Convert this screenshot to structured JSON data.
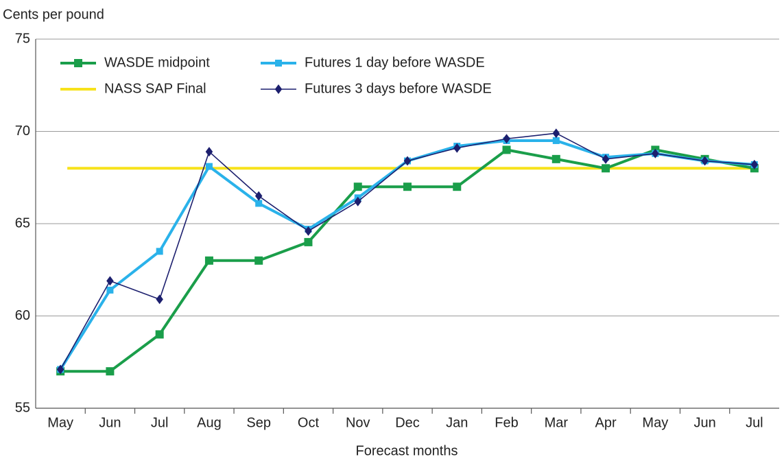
{
  "chart_data": {
    "type": "line",
    "y_label": "Cents per pound",
    "x_label": "Forecast months",
    "categories": [
      "May",
      "Jun",
      "Jul",
      "Aug",
      "Sep",
      "Oct",
      "Nov",
      "Dec",
      "Jan",
      "Feb",
      "Mar",
      "Apr",
      "May",
      "Jun",
      "Jul"
    ],
    "series": [
      {
        "name": "WASDE midpoint",
        "color": "#1a9e4a",
        "marker": "square",
        "values": [
          57,
          57,
          59,
          63,
          63,
          64,
          67,
          67,
          67,
          69,
          68.5,
          68,
          69,
          68.5,
          68
        ]
      },
      {
        "name": "Futures 1 day before WASDE",
        "color": "#2ab2ea",
        "marker": "square",
        "values": [
          57.1,
          61.4,
          63.5,
          68.1,
          66.1,
          64.7,
          66.4,
          68.4,
          69.2,
          69.5,
          69.5,
          68.6,
          68.8,
          68.4,
          68.2
        ]
      },
      {
        "name": "Futures 3 days before WASDE",
        "color": "#1c1f6e",
        "marker": "diamond",
        "values": [
          57.1,
          61.9,
          60.9,
          68.9,
          66.5,
          64.6,
          66.2,
          68.4,
          69.1,
          69.6,
          69.9,
          68.5,
          68.8,
          68.4,
          68.2
        ]
      }
    ],
    "reference_line": {
      "name": "NASS SAP Final",
      "color": "#f7e21b",
      "value": 68
    },
    "ylim": [
      55,
      75
    ],
    "yticks": [
      55,
      60,
      65,
      70,
      75
    ],
    "grid": true
  }
}
